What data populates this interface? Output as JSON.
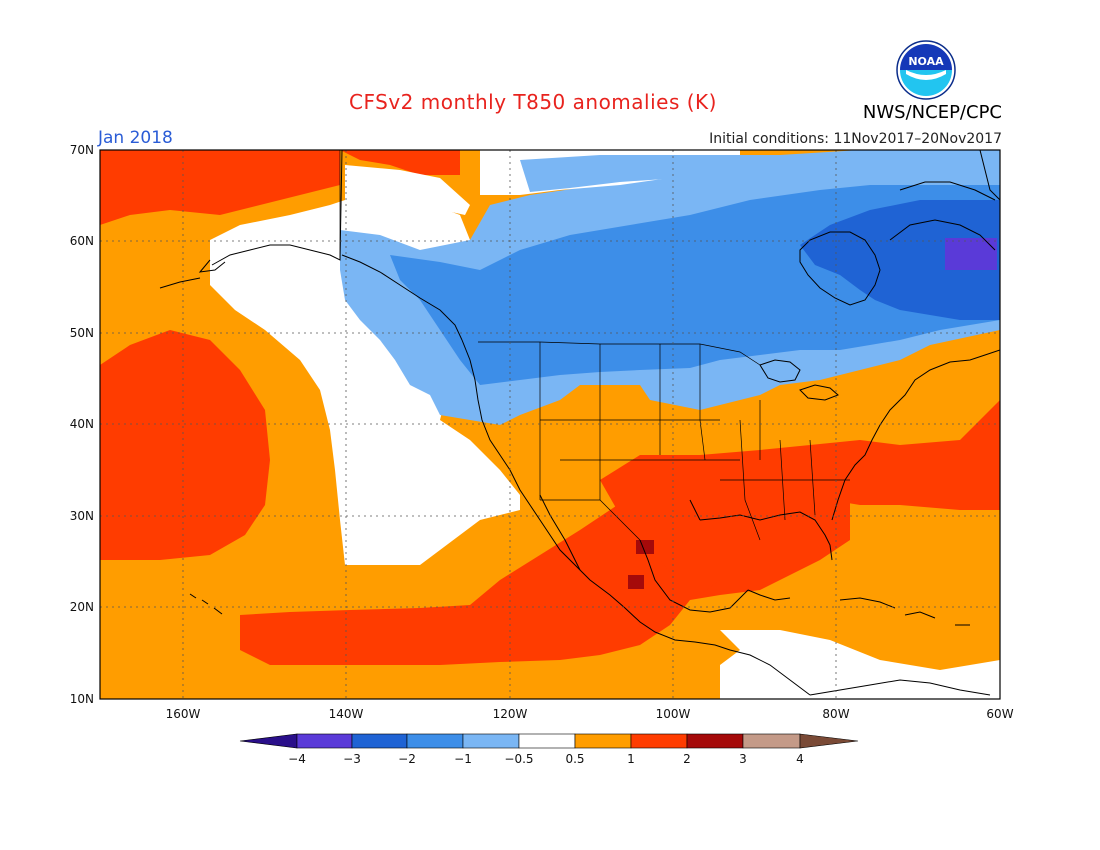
{
  "header": {
    "title": "CFSv2 monthly T850 anomalies (K)",
    "month": "Jan 2018",
    "initial_conditions": "Initial conditions: 11Nov2017–20Nov2017",
    "agency": "NWS/NCEP/CPC",
    "logo_text": "NOAA"
  },
  "axes": {
    "lat_labels": [
      "70N",
      "60N",
      "50N",
      "40N",
      "30N",
      "20N",
      "10N"
    ],
    "lon_labels": [
      "160W",
      "140W",
      "120W",
      "100W",
      "80W",
      "60W"
    ]
  },
  "colorbar": {
    "labels": [
      "−4",
      "−3",
      "−2",
      "−1",
      "−0.5",
      "0.5",
      "1",
      "2",
      "3",
      "4"
    ],
    "colors": [
      "#2a0f8a",
      "#5a3ad8",
      "#1f63d4",
      "#3d8ee8",
      "#7ab6f4",
      "#ffffff",
      "#ff9d00",
      "#ff3c00",
      "#a50a0a",
      "#c49a88",
      "#7a4a36"
    ]
  },
  "palette": {
    "ocean_border": "#000000",
    "grid": "#555555"
  }
}
